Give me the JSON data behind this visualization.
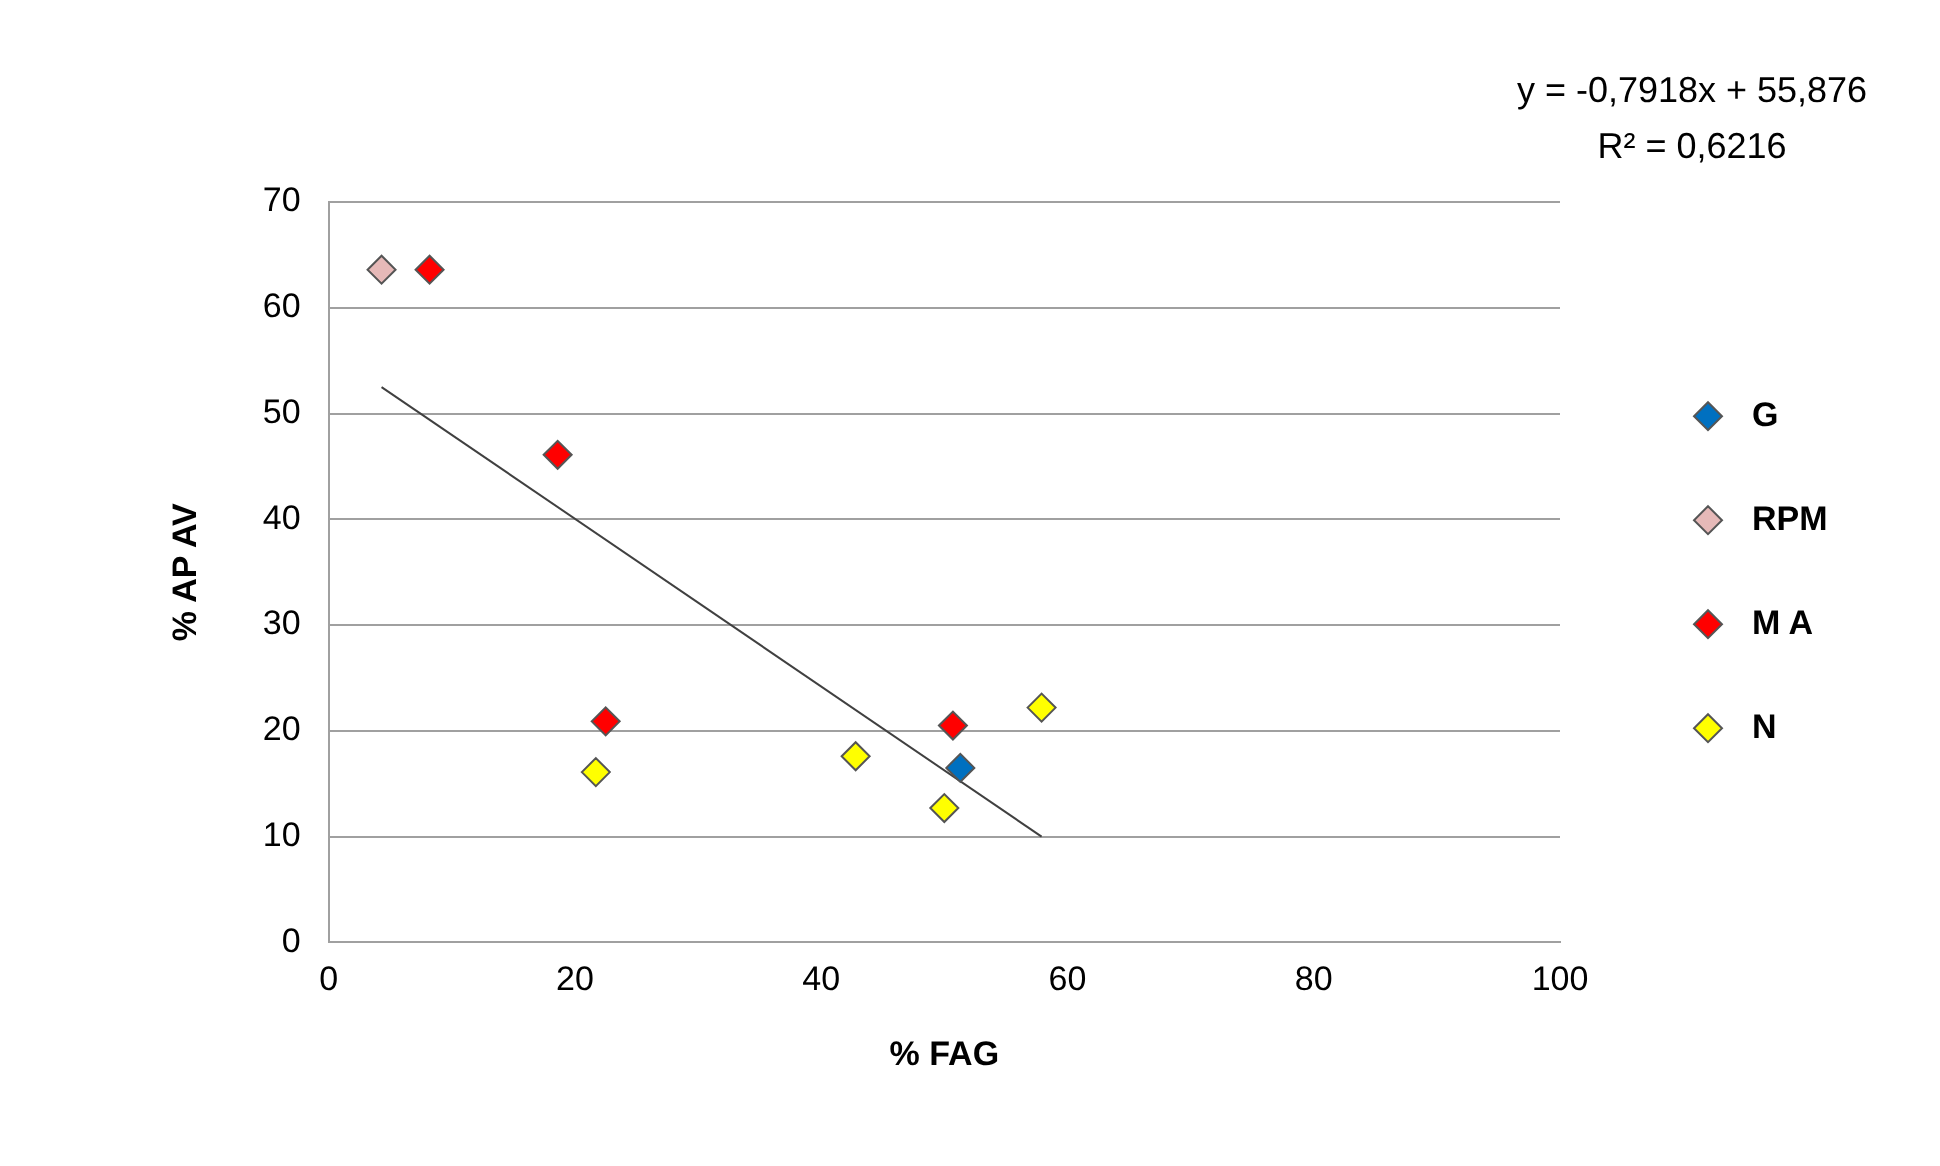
{
  "chart_data": {
    "type": "scatter",
    "xlabel": "% FAG",
    "ylabel": "% AP AV",
    "xlim": [
      0,
      100
    ],
    "xticks": [
      0,
      20,
      40,
      60,
      80,
      100
    ],
    "ylim": [
      0,
      70
    ],
    "yticks": [
      0,
      10,
      20,
      30,
      40,
      50,
      60,
      70
    ],
    "grid": "y",
    "legend": "right",
    "marker": "diamond",
    "annotations": [
      "y = -0,7918x + 55,876",
      "R² = 0,6216"
    ],
    "series": [
      {
        "name": "G",
        "color": "#0070c0",
        "x": [
          51.3
        ],
        "values": [
          16.5
        ]
      },
      {
        "name": "RPM",
        "color": "#e6b9b8",
        "x": [
          4.3
        ],
        "values": [
          63.6
        ]
      },
      {
        "name": "M A",
        "color": "#ff0000",
        "x": [
          8.2,
          18.6,
          22.5,
          50.7
        ],
        "values": [
          63.6,
          46.1,
          20.9,
          20.5
        ]
      },
      {
        "name": "N",
        "color": "#ffff00",
        "x": [
          21.7,
          42.8,
          50,
          57.9
        ],
        "values": [
          16.1,
          17.6,
          12.7,
          22.2
        ]
      },
      {
        "type": "line",
        "color": "#404040",
        "x": [
          4.3,
          57.9
        ],
        "values": [
          52.5,
          10.0
        ],
        "marker": "none"
      }
    ]
  }
}
